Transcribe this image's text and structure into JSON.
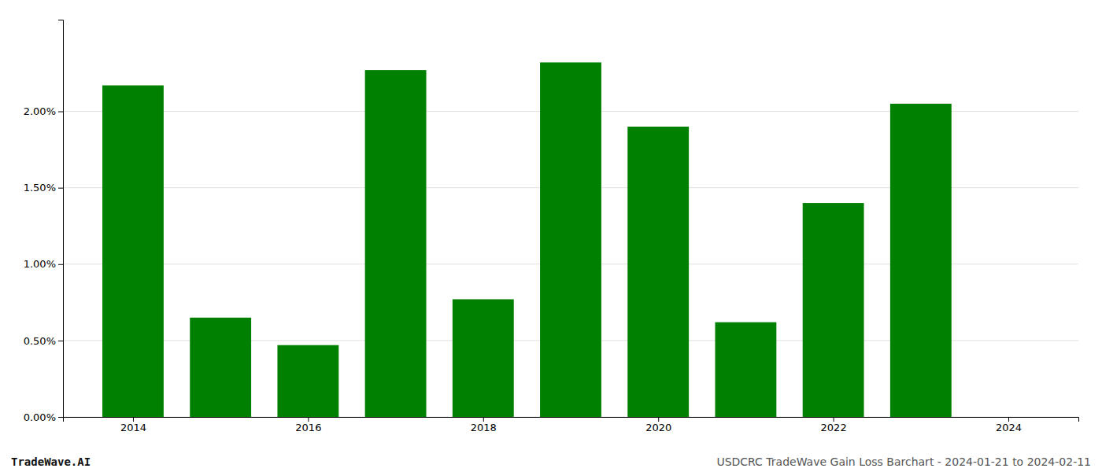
{
  "chart_data": {
    "type": "bar",
    "x": [
      2014,
      2015,
      2016,
      2017,
      2018,
      2019,
      2020,
      2021,
      2022,
      2023
    ],
    "values": [
      0.0217,
      0.0065,
      0.0047,
      0.0227,
      0.0077,
      0.0232,
      0.019,
      0.0062,
      0.014,
      0.0205
    ],
    "color": "#008000",
    "xlim": [
      2013.2,
      2024.8
    ],
    "xticks": [
      2014,
      2016,
      2018,
      2020,
      2022,
      2024
    ],
    "ylim": [
      0,
      0.026
    ],
    "yticks": [
      {
        "value": 0.0,
        "label": "0.00%"
      },
      {
        "value": 0.005,
        "label": "0.50%"
      },
      {
        "value": 0.01,
        "label": "1.00%"
      },
      {
        "value": 0.015,
        "label": "1.50%"
      },
      {
        "value": 0.02,
        "label": "2.00%"
      }
    ],
    "grid": true,
    "annotations": [
      "TradeWave.AI",
      "USDCRC TradeWave Gain Loss Barchart - 2024-01-21 to 2024-02-11"
    ]
  }
}
